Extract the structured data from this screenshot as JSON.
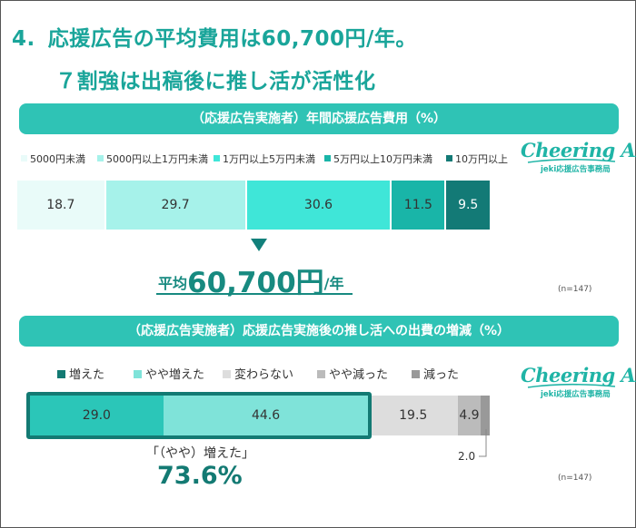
{
  "headline": {
    "number": "4.",
    "line1": "応援広告の平均費用は60,700円/年。",
    "line2": "７割強は出稿後に推し活が活性化"
  },
  "logo": {
    "script": "Cheering AD",
    "sub": "jeki応援広告事務局"
  },
  "colors": {
    "accent": "#2fc3b5",
    "dark_teal": "#137a73",
    "title_teal": "#1aa59a"
  },
  "chart_data": [
    {
      "type": "bar",
      "orientation": "horizontal-stacked",
      "title": "（応援広告実施者）年間応援広告費用（%）",
      "note": "(n=147)",
      "series": [
        {
          "name": "5000円未満",
          "value": 18.7,
          "label": "18.7",
          "color": "#e9fbf9"
        },
        {
          "name": "5000円以上1万円未満",
          "value": 29.7,
          "label": "29.7",
          "color": "#a6f2ea"
        },
        {
          "name": "1万円以上5万円未満",
          "value": 30.6,
          "label": "30.6",
          "color": "#3fe6d8"
        },
        {
          "name": "5万円以上10万円未満",
          "value": 11.5,
          "label": "11.5",
          "color": "#19b5a8"
        },
        {
          "name": "10万円以上",
          "value": 9.5,
          "label": "9.5",
          "color": "#137a76"
        }
      ],
      "average": {
        "label": "平均",
        "value": "60,700円",
        "unit": "/年"
      }
    },
    {
      "type": "bar",
      "orientation": "horizontal-stacked",
      "title": "（応援広告実施者）応援広告実施後の推し活への出費の増減（%）",
      "note": "(n=147)",
      "series": [
        {
          "name": "増えた",
          "value": 29.0,
          "label": "29.0",
          "color": "#2bc6b8"
        },
        {
          "name": "やや増えた",
          "value": 44.6,
          "label": "44.6",
          "color": "#7fe3d9"
        },
        {
          "name": "変わらない",
          "value": 19.5,
          "label": "19.5",
          "color": "#dddddd"
        },
        {
          "name": "やや減った",
          "value": 4.9,
          "label": "4.9",
          "color": "#bbbbbb"
        },
        {
          "name": "減った",
          "value": 2.0,
          "label": "2.0",
          "color": "#999999"
        }
      ],
      "legend_colors": [
        "#137a73",
        "#7fe3d9",
        "#dddddd",
        "#bbbbbb",
        "#999999"
      ],
      "summary": {
        "label": "「（やや）増えた」",
        "value": "73.6%"
      }
    }
  ]
}
